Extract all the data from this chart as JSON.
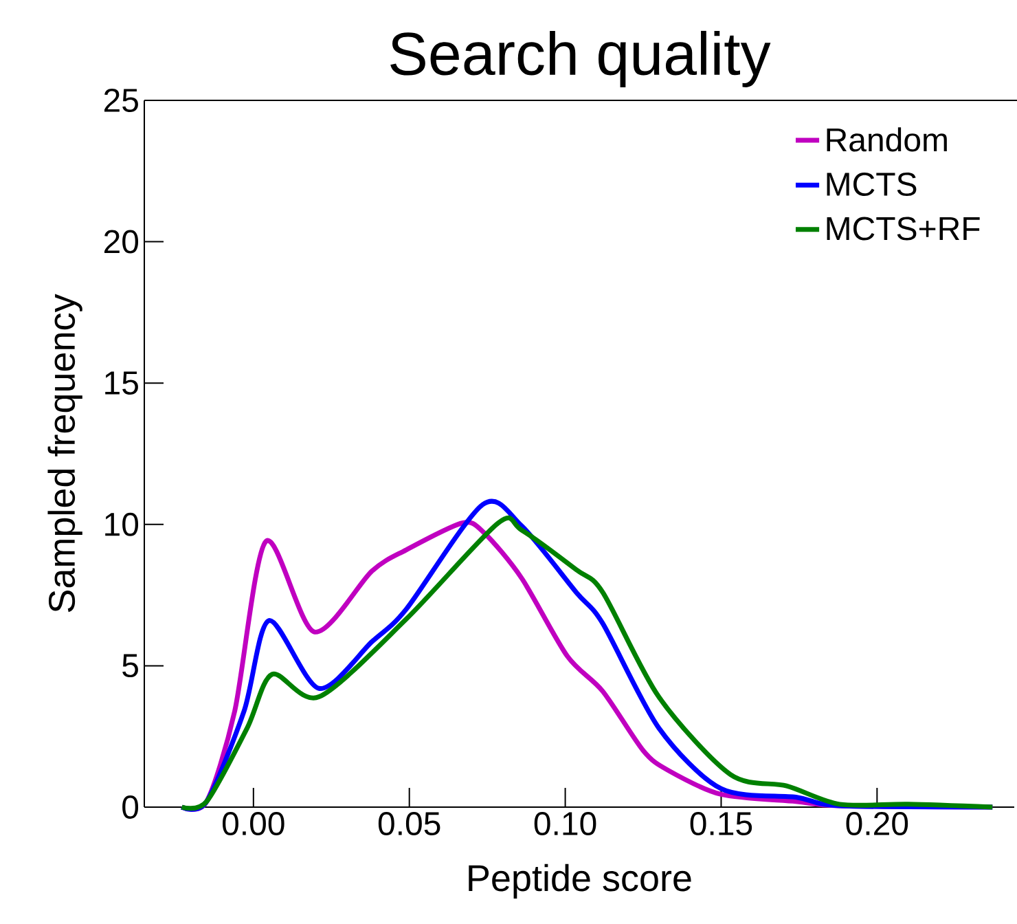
{
  "chart_data": {
    "type": "line",
    "title": "Search quality",
    "xlabel": "Peptide score",
    "ylabel": "Sampled frequency",
    "xlim": [
      -0.035,
      0.244
    ],
    "ylim": [
      0,
      25
    ],
    "xticks": [
      {
        "value": 0,
        "label": "0.00"
      },
      {
        "value": 0.05,
        "label": "0.05"
      },
      {
        "value": 0.1,
        "label": "0.10"
      },
      {
        "value": 0.15,
        "label": "0.15"
      },
      {
        "value": 0.2,
        "label": "0.20"
      }
    ],
    "yticks": [
      0,
      5,
      10,
      15,
      20,
      25
    ],
    "legend": "top right",
    "grid": false,
    "series": [
      {
        "name": "Random",
        "color": "#c000c0",
        "x": [
          -0.023,
          -0.015,
          -0.006,
          0.004,
          0.0195,
          0.038,
          0.049,
          0.067,
          0.074,
          0.086,
          0.1006,
          0.112,
          0.125,
          0.133,
          0.15,
          0.174,
          0.188,
          0.237
        ],
        "values": [
          0,
          0.2,
          3.4,
          9.4,
          6.2,
          8.35,
          9.1,
          10.05,
          9.7,
          8.1,
          5.35,
          4.1,
          2.0,
          1.3,
          0.45,
          0.2,
          0.05,
          0
        ]
      },
      {
        "name": "MCTS",
        "color": "#0000ff",
        "x": [
          -0.023,
          -0.015,
          -0.003,
          0.005,
          0.021,
          0.038,
          0.049,
          0.0735,
          0.086,
          0.1035,
          0.112,
          0.13,
          0.15,
          0.174,
          0.188,
          0.237
        ],
        "values": [
          0,
          0.2,
          3.4,
          6.6,
          4.2,
          5.85,
          7.0,
          10.7,
          9.95,
          7.6,
          6.5,
          2.8,
          0.65,
          0.35,
          0.05,
          0
        ]
      },
      {
        "name": "MCTS+RF",
        "color": "#008000",
        "x": [
          -0.023,
          -0.015,
          -0.002,
          0.006,
          0.021,
          0.049,
          0.0785,
          0.086,
          0.1035,
          0.112,
          0.13,
          0.153,
          0.171,
          0.188,
          0.21,
          0.237
        ],
        "values": [
          0,
          0.2,
          2.8,
          4.7,
          3.9,
          6.65,
          10.05,
          9.8,
          8.4,
          7.6,
          3.9,
          1.15,
          0.75,
          0.1,
          0.1,
          0
        ]
      }
    ]
  }
}
